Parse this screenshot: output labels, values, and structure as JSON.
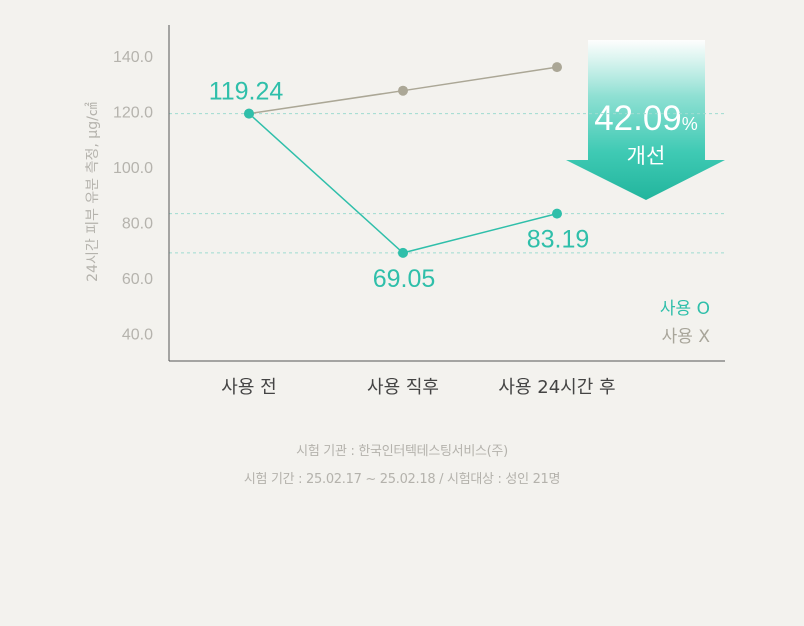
{
  "chart_data": {
    "type": "line",
    "ylabel": "24시간 피부 유분 측정, μg/㎠",
    "ylim": [
      30,
      150
    ],
    "yticks": [
      40,
      60,
      80,
      100,
      120,
      140
    ],
    "ytick_labels": [
      "40.0",
      "60.0",
      "80.0",
      "100.0",
      "120.0",
      "140.0"
    ],
    "categories": [
      "사용 전",
      "사용 직후",
      "사용 24시간 후"
    ],
    "series": [
      {
        "name": "사용 O",
        "color": "#2fbfaa",
        "values": [
          119.24,
          69.05,
          83.19
        ],
        "labels": [
          "119.24",
          "69.05",
          "83.19"
        ]
      },
      {
        "name": "사용 X",
        "color": "#aba796",
        "values": [
          119.24,
          127.5,
          136.0
        ]
      }
    ],
    "reference_lines": [
      119.24,
      83.19,
      69.05
    ],
    "callout": {
      "percent_value": "42.09",
      "percent_sign": "%",
      "label": "개선"
    }
  },
  "footnotes": [
    "시험 기관 : 한국인터텍테스팅서비스(주)",
    "시험 기간 : 25.02.17 ~ 25.02.18 / 시험대상 : 성인 21명"
  ]
}
